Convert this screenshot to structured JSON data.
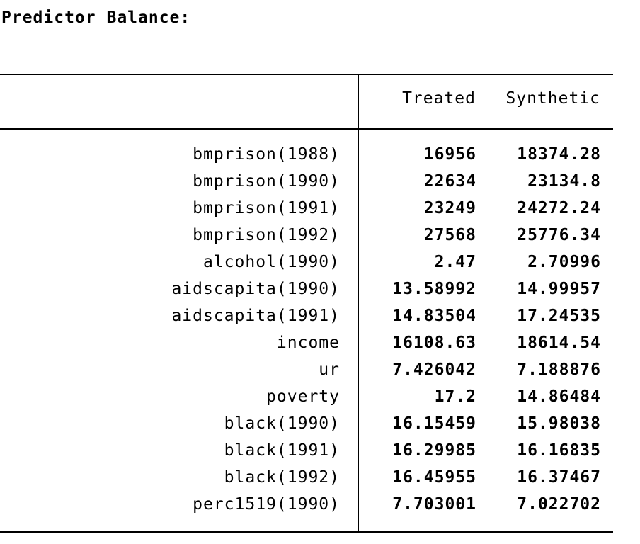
{
  "title": "Predictor Balance:",
  "columns": {
    "treated": "Treated",
    "synthetic": "Synthetic"
  },
  "rows": [
    {
      "label": "bmprison(1988)",
      "treated": "16956",
      "synthetic": "18374.28"
    },
    {
      "label": "bmprison(1990)",
      "treated": "22634",
      "synthetic": "23134.8"
    },
    {
      "label": "bmprison(1991)",
      "treated": "23249",
      "synthetic": "24272.24"
    },
    {
      "label": "bmprison(1992)",
      "treated": "27568",
      "synthetic": "25776.34"
    },
    {
      "label": "alcohol(1990)",
      "treated": "2.47",
      "synthetic": "2.70996"
    },
    {
      "label": "aidscapita(1990)",
      "treated": "13.58992",
      "synthetic": "14.99957"
    },
    {
      "label": "aidscapita(1991)",
      "treated": "14.83504",
      "synthetic": "17.24535"
    },
    {
      "label": "income",
      "treated": "16108.63",
      "synthetic": "18614.54"
    },
    {
      "label": "ur",
      "treated": "7.426042",
      "synthetic": "7.188876"
    },
    {
      "label": "poverty",
      "treated": "17.2",
      "synthetic": "14.86484"
    },
    {
      "label": "black(1990)",
      "treated": "16.15459",
      "synthetic": "15.98038"
    },
    {
      "label": "black(1991)",
      "treated": "16.29985",
      "synthetic": "16.16835"
    },
    {
      "label": "black(1992)",
      "treated": "16.45955",
      "synthetic": "16.37467"
    },
    {
      "label": "perc1519(1990)",
      "treated": "7.703001",
      "synthetic": "7.022702"
    }
  ]
}
